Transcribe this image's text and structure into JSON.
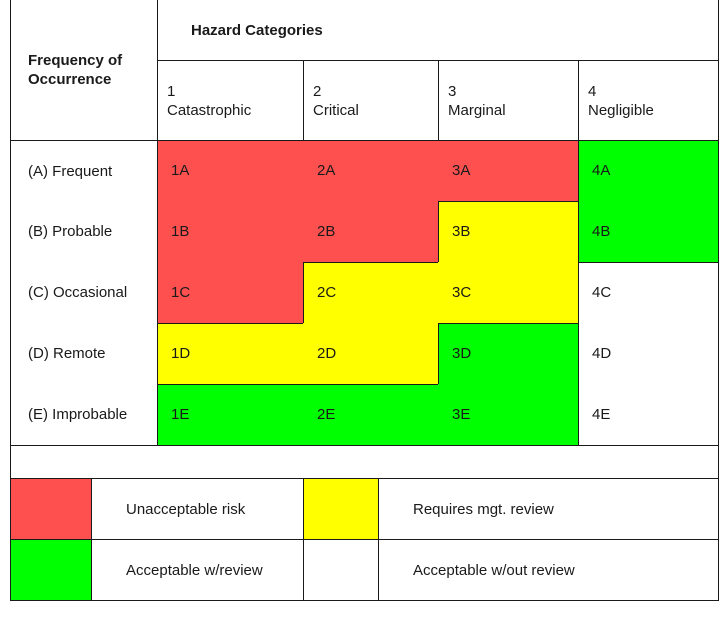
{
  "header": {
    "row_header_title": [
      "Frequency of",
      "Occurrence"
    ],
    "column_group_title": "Hazard Categories"
  },
  "columns": [
    {
      "number": "1",
      "label": "Catastrophic"
    },
    {
      "number": "2",
      "label": "Critical"
    },
    {
      "number": "3",
      "label": "Marginal"
    },
    {
      "number": "4",
      "label": "Negligible"
    }
  ],
  "rows": [
    {
      "label": "(A) Frequent",
      "cells": [
        "1A",
        "2A",
        "3A",
        "4A"
      ],
      "levels": [
        "unacceptable",
        "unacceptable",
        "unacceptable",
        "acceptable_review"
      ]
    },
    {
      "label": "(B) Probable",
      "cells": [
        "1B",
        "2B",
        "3B",
        "4B"
      ],
      "levels": [
        "unacceptable",
        "unacceptable",
        "mgt_review",
        "acceptable_review"
      ]
    },
    {
      "label": "(C) Occasional",
      "cells": [
        "1C",
        "2C",
        "3C",
        "4C"
      ],
      "levels": [
        "unacceptable",
        "mgt_review",
        "mgt_review",
        "acceptable_no_review"
      ]
    },
    {
      "label": "(D) Remote",
      "cells": [
        "1D",
        "2D",
        "3D",
        "4D"
      ],
      "levels": [
        "mgt_review",
        "mgt_review",
        "acceptable_review",
        "acceptable_no_review"
      ]
    },
    {
      "label": "(E) Improbable",
      "cells": [
        "1E",
        "2E",
        "3E",
        "4E"
      ],
      "levels": [
        "acceptable_review",
        "acceptable_review",
        "acceptable_review",
        "acceptable_no_review"
      ]
    }
  ],
  "legend": [
    {
      "key": "unacceptable",
      "label": "Unacceptable risk",
      "color": "#ff5050"
    },
    {
      "key": "mgt_review",
      "label": "Requires mgt. review",
      "color": "#ffff00"
    },
    {
      "key": "acceptable_review",
      "label": "Acceptable w/review",
      "color": "#00ff00"
    },
    {
      "key": "acceptable_no_review",
      "label": "Acceptable w/out review",
      "color": "#ffffff"
    }
  ],
  "colors": {
    "unacceptable": "#ff5050",
    "mgt_review": "#ffff00",
    "acceptable_review": "#00ff00",
    "acceptable_no_review": "#ffffff",
    "border": "#1a1a1a"
  }
}
